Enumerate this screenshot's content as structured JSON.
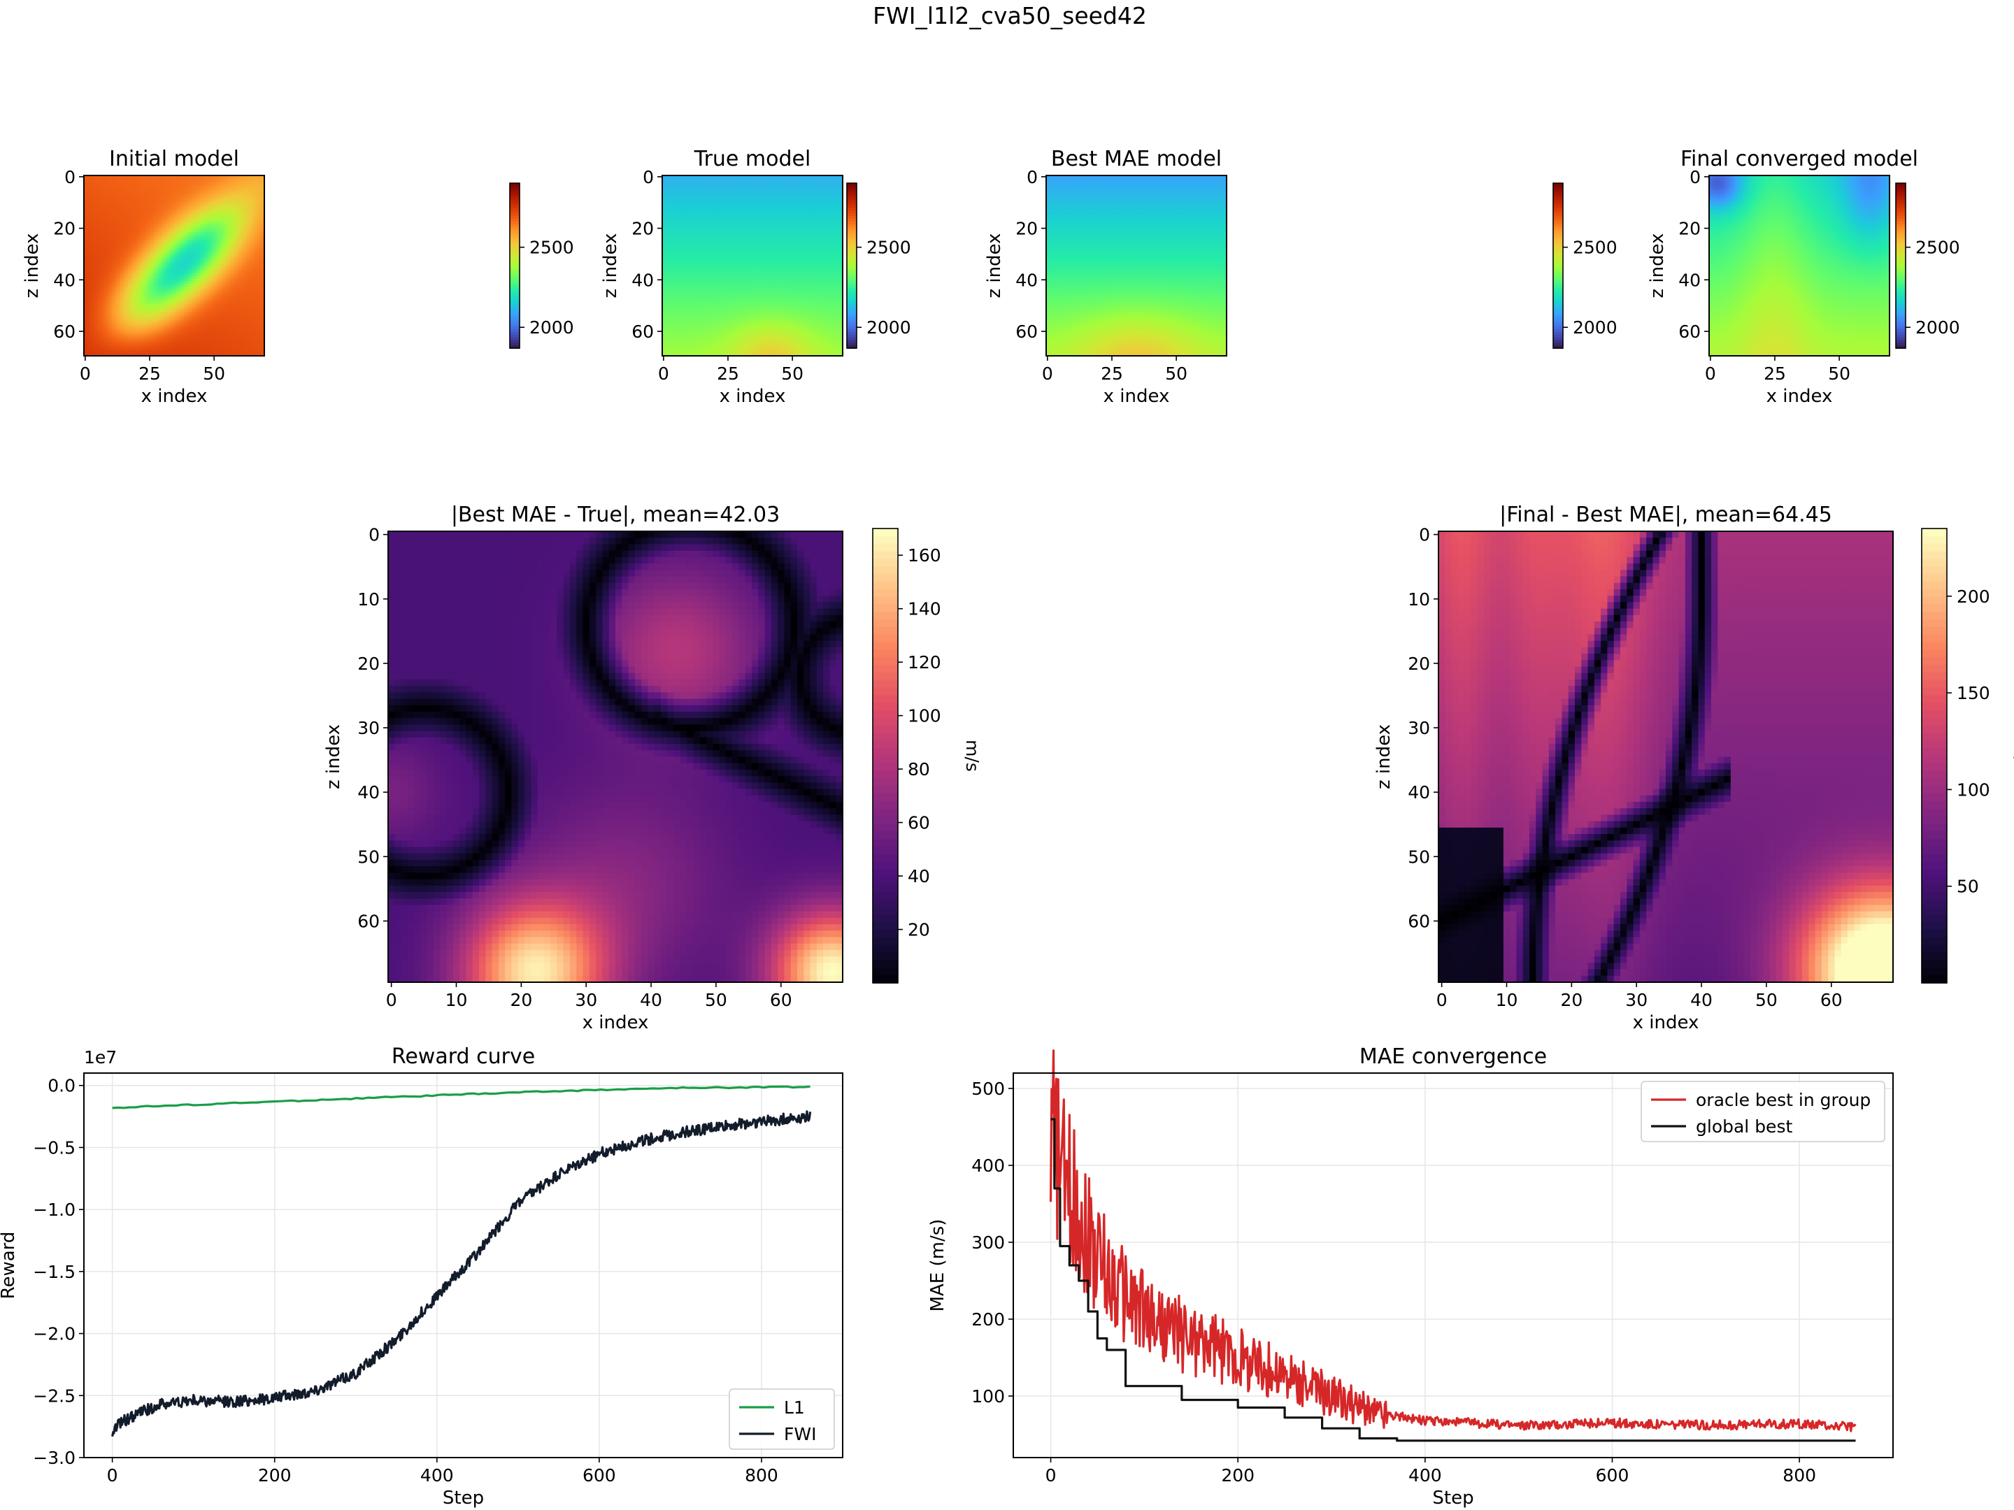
{
  "figure": {
    "suptitle": "FWI_l1l2_cva50_seed42"
  },
  "chart_data": [
    {
      "type": "heatmap",
      "title": "Initial model",
      "xlabel": "x index",
      "ylabel": "z index",
      "xticks": [
        "0",
        "25",
        "50"
      ],
      "yticks": [
        "0",
        "20",
        "40",
        "60"
      ],
      "grid_size": [
        70,
        70
      ],
      "colormap": "turbo",
      "colorbar_ticks": [
        "2500",
        "2000"
      ],
      "colorbar_range": [
        1870,
        2900
      ]
    },
    {
      "type": "heatmap",
      "title": "True model",
      "xlabel": "x index",
      "ylabel": "z index",
      "xticks": [
        "0",
        "25",
        "50"
      ],
      "yticks": [
        "0",
        "20",
        "40",
        "60"
      ],
      "grid_size": [
        70,
        70
      ],
      "colormap": "turbo",
      "colorbar_ticks": [
        "2500",
        "2000"
      ],
      "colorbar_range": [
        1870,
        2900
      ]
    },
    {
      "type": "heatmap",
      "title": "Best MAE model",
      "xlabel": "x index",
      "ylabel": "z index",
      "xticks": [
        "0",
        "25",
        "50"
      ],
      "yticks": [
        "0",
        "20",
        "40",
        "60"
      ],
      "grid_size": [
        70,
        70
      ],
      "colormap": "turbo",
      "colorbar_ticks": [
        "2500",
        "2000"
      ],
      "colorbar_range": [
        1870,
        2900
      ]
    },
    {
      "type": "heatmap",
      "title": "Final converged model",
      "xlabel": "x index",
      "ylabel": "z index",
      "xticks": [
        "0",
        "25",
        "50"
      ],
      "yticks": [
        "0",
        "20",
        "40",
        "60"
      ],
      "grid_size": [
        70,
        70
      ],
      "colormap": "turbo",
      "colorbar_ticks": [
        "2500",
        "2000"
      ],
      "colorbar_range": [
        1870,
        2900
      ]
    },
    {
      "type": "heatmap",
      "title": "|Best MAE - True|, mean=42.03",
      "xlabel": "x index",
      "ylabel": "z index",
      "xticks": [
        "0",
        "10",
        "20",
        "30",
        "40",
        "50",
        "60"
      ],
      "yticks": [
        "0",
        "10",
        "20",
        "30",
        "40",
        "50",
        "60"
      ],
      "grid_size": [
        70,
        70
      ],
      "colormap": "magma",
      "colorbar_label": "m/s",
      "colorbar_ticks": [
        "160",
        "140",
        "120",
        "100",
        "80",
        "60",
        "40",
        "20"
      ],
      "colorbar_range": [
        0,
        170
      ]
    },
    {
      "type": "heatmap",
      "title": "|Final - Best MAE|, mean=64.45",
      "xlabel": "x index",
      "ylabel": "z index",
      "xticks": [
        "0",
        "10",
        "20",
        "30",
        "40",
        "50",
        "60"
      ],
      "yticks": [
        "0",
        "10",
        "20",
        "30",
        "40",
        "50",
        "60"
      ],
      "grid_size": [
        70,
        70
      ],
      "colormap": "magma",
      "colorbar_label": "m/s",
      "colorbar_ticks": [
        "200",
        "150",
        "100",
        "50"
      ],
      "colorbar_range": [
        0,
        235
      ]
    },
    {
      "type": "line",
      "title": "Reward curve",
      "xlabel": "Step",
      "ylabel": "Reward",
      "offset_label": "1e7",
      "xlim": [
        -35,
        900
      ],
      "ylim": [
        -3.0,
        0.1
      ],
      "xticks": [
        "0",
        "200",
        "400",
        "600",
        "800"
      ],
      "yticks": [
        "0.0",
        "−0.5",
        "−1.0",
        "−1.5",
        "−2.0",
        "−2.5",
        "−3.0"
      ],
      "grid": true,
      "legend_position": "lower right",
      "series": [
        {
          "name": "L1",
          "color": "#1a9e47",
          "x": [
            0,
            100,
            200,
            300,
            400,
            500,
            600,
            700,
            860
          ],
          "values": [
            -0.18,
            -0.155,
            -0.13,
            -0.105,
            -0.08,
            -0.055,
            -0.035,
            -0.02,
            -0.01
          ]
        },
        {
          "name": "FWI",
          "color": "#131c2b",
          "x": [
            0,
            10,
            30,
            60,
            100,
            150,
            200,
            250,
            300,
            350,
            400,
            450,
            500,
            550,
            600,
            650,
            700,
            750,
            800,
            860
          ],
          "values": [
            -2.8,
            -2.72,
            -2.65,
            -2.57,
            -2.54,
            -2.55,
            -2.52,
            -2.46,
            -2.32,
            -2.05,
            -1.7,
            -1.35,
            -0.95,
            -0.72,
            -0.55,
            -0.45,
            -0.38,
            -0.33,
            -0.29,
            -0.25
          ]
        }
      ]
    },
    {
      "type": "line",
      "title": "MAE convergence",
      "xlabel": "Step",
      "ylabel": "MAE (m/s)",
      "xlim": [
        -40,
        900
      ],
      "ylim": [
        20,
        520
      ],
      "xticks": [
        "0",
        "200",
        "400",
        "600",
        "800"
      ],
      "yticks": [
        "500",
        "400",
        "300",
        "200",
        "100"
      ],
      "grid": true,
      "legend_position": "upper right",
      "series": [
        {
          "name": "oracle best in group",
          "color": "#d62728",
          "x": [
            0,
            5,
            15,
            30,
            50,
            80,
            120,
            160,
            200,
            250,
            300,
            340,
            400,
            500,
            600,
            700,
            800,
            860
          ],
          "values": [
            460,
            420,
            380,
            340,
            280,
            230,
            190,
            170,
            150,
            125,
            100,
            80,
            68,
            62,
            65,
            62,
            64,
            60
          ]
        },
        {
          "name": "global best",
          "color": "#111111",
          "x": [
            0,
            4,
            10,
            20,
            30,
            40,
            50,
            60,
            80,
            140,
            200,
            250,
            290,
            330,
            370,
            420,
            860
          ],
          "values": [
            460,
            370,
            295,
            270,
            250,
            210,
            175,
            160,
            113,
            95,
            85,
            72,
            58,
            45,
            42,
            42,
            42
          ]
        }
      ]
    }
  ]
}
